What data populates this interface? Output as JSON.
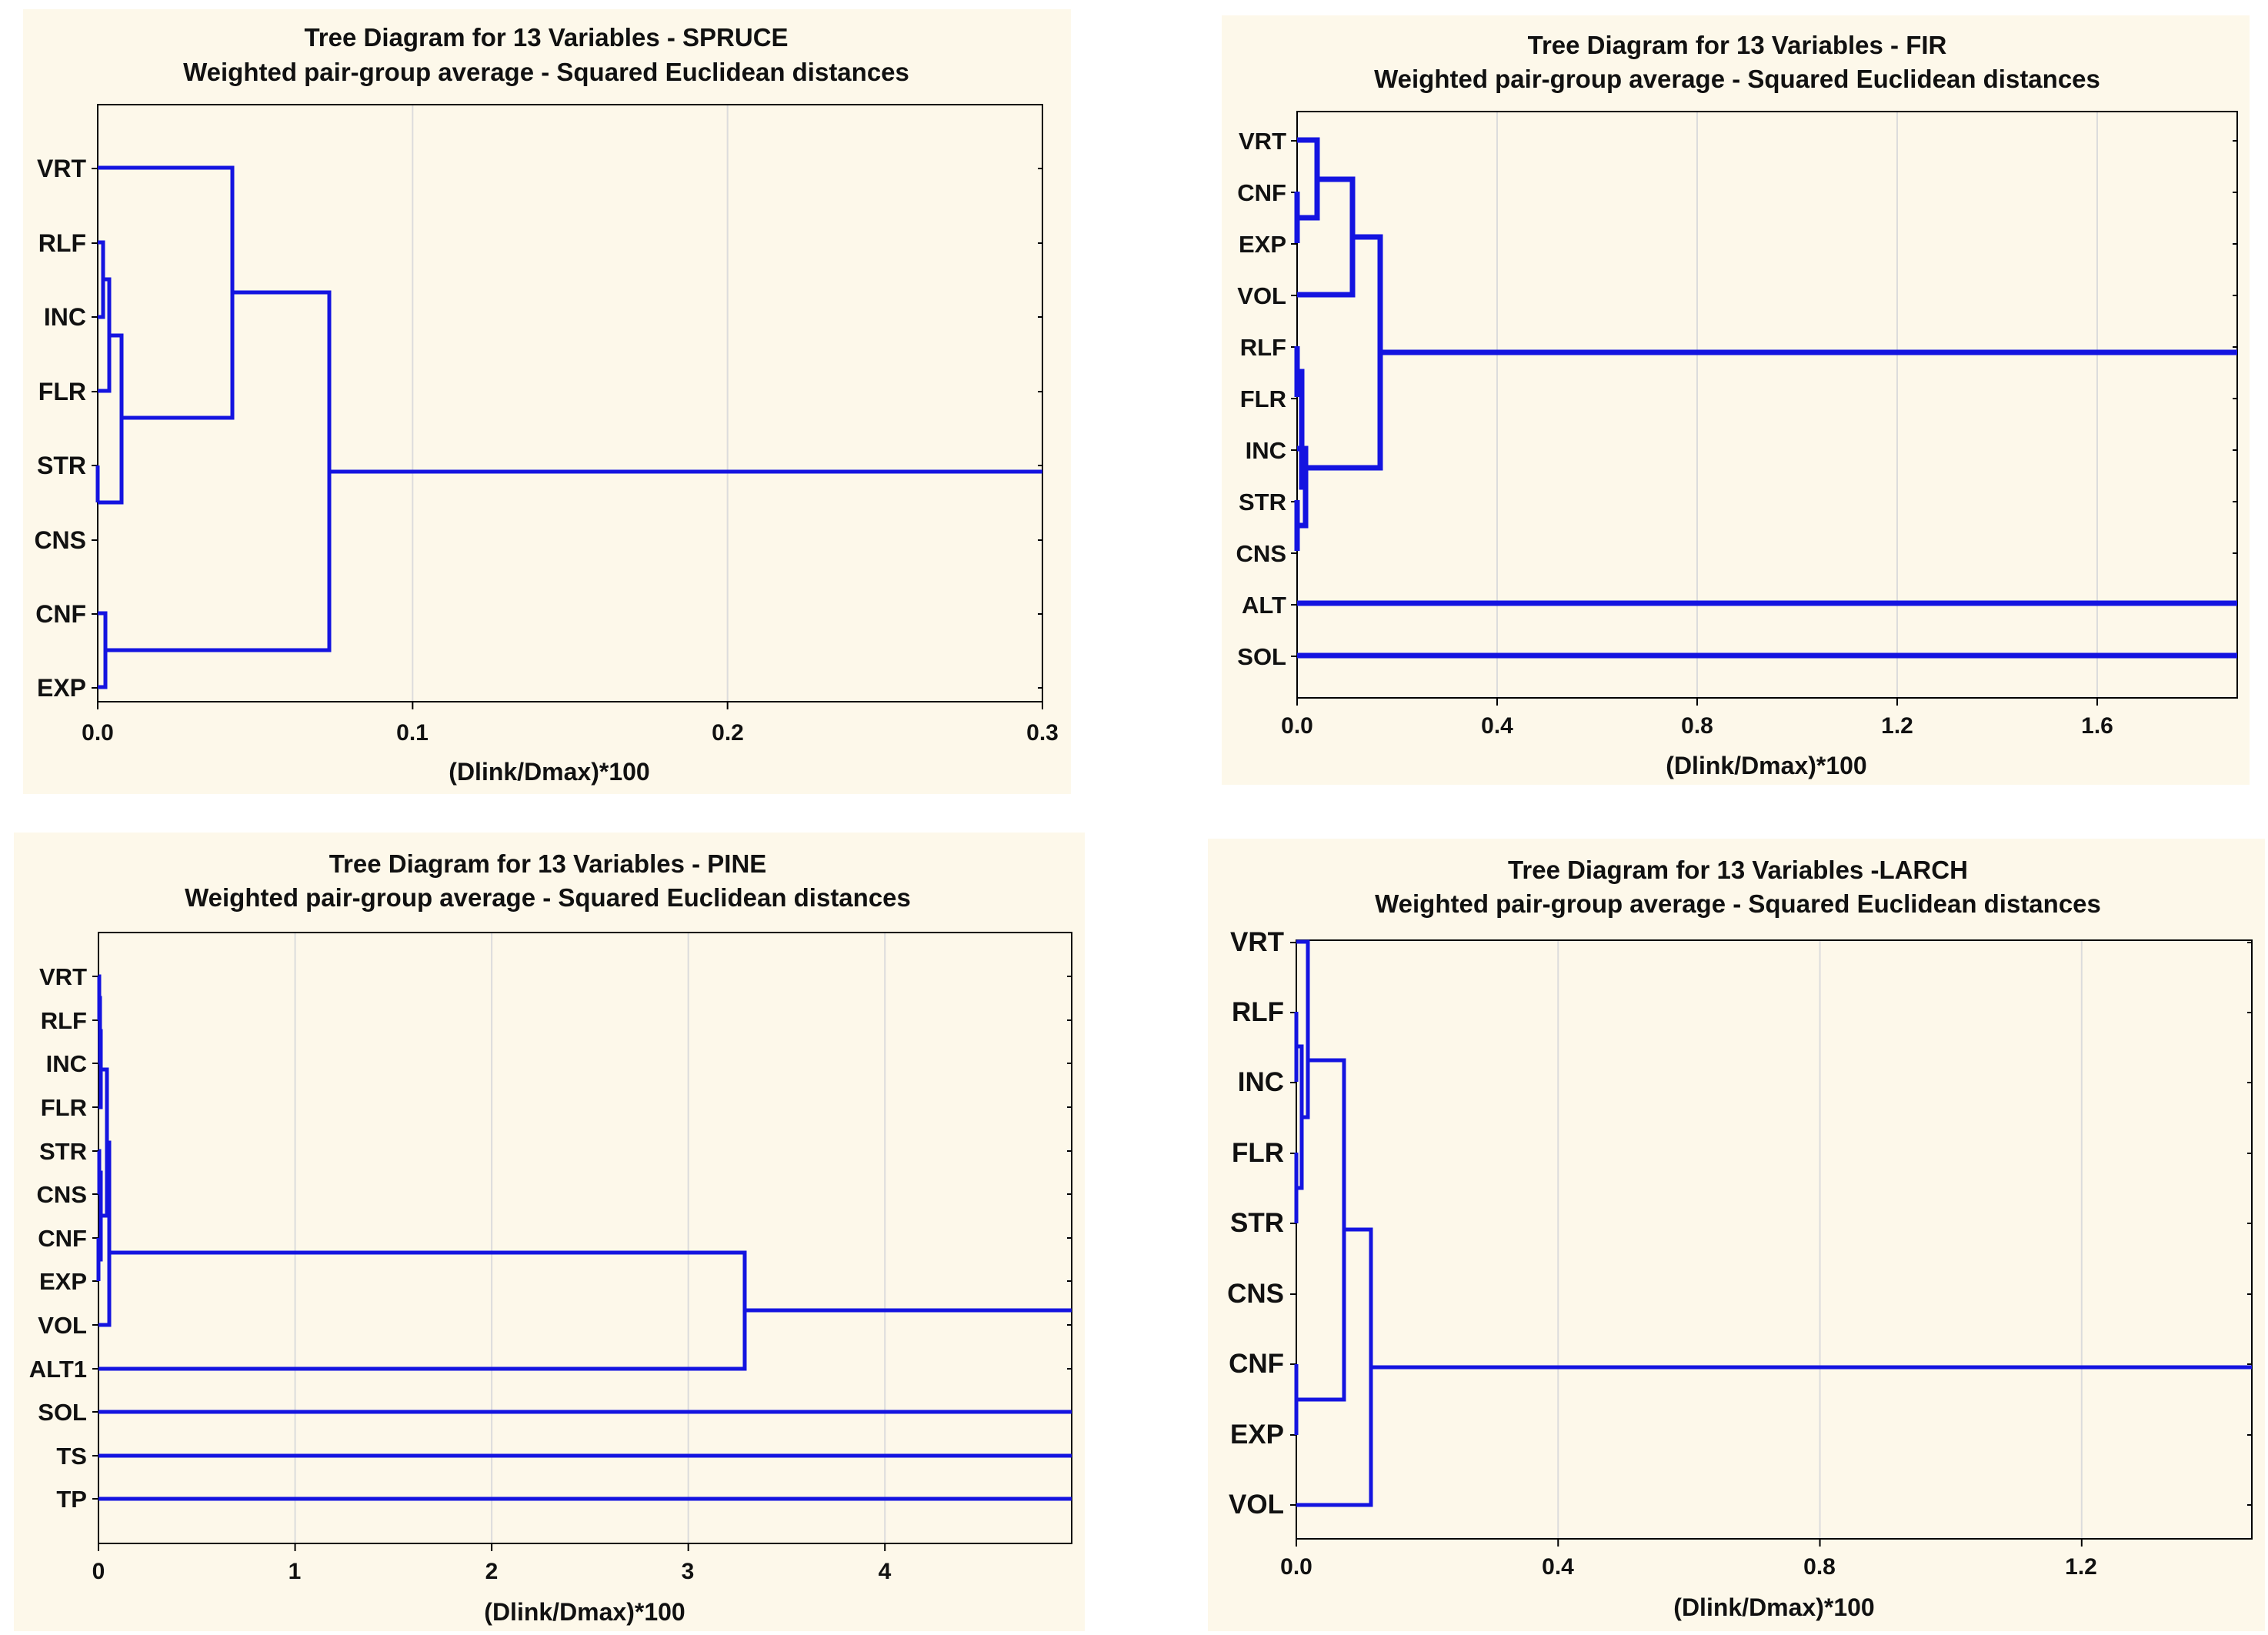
{
  "chart_data": [
    {
      "type": "dendrogram",
      "title": "Tree Diagram for 13 Variables - SPRUCE",
      "subtitle": "Weighted pair-group average - Squared Euclidean distances",
      "xlabel": "(Dlink/Dmax)*100",
      "xlim": [
        0,
        0.3
      ],
      "xticks": [
        0.0,
        0.1,
        0.2,
        0.3
      ],
      "xtick_labels": [
        "0.0",
        "0.1",
        "0.2",
        "0.3"
      ],
      "leaves": [
        "VRT",
        "RLF",
        "INC",
        "FLR",
        "STR",
        "CNS",
        "CNF",
        "EXP"
      ],
      "merges": [
        {
          "a": "RLF",
          "b": "INC",
          "height": 0.002
        },
        {
          "a": 1,
          "b": "FLR",
          "height": 0.004
        },
        {
          "a": "STR",
          "b": "CNS",
          "height": 0.0
        },
        {
          "a": 2,
          "b": 3,
          "height": 0.008
        },
        {
          "a": "VRT",
          "b": 4,
          "height": 0.042
        },
        {
          "a": "CNF",
          "b": "EXP",
          "height": 0.003
        },
        {
          "a": 5,
          "b": 6,
          "height": 0.073
        },
        {
          "a": 7,
          "b": "root",
          "height": 0.3
        }
      ]
    },
    {
      "type": "dendrogram",
      "title": "Tree Diagram for 13 Variables - FIR",
      "subtitle": "Weighted pair-group average - Squared Euclidean distances",
      "xlabel": "(Dlink/Dmax)*100",
      "xlim": [
        0,
        1.88
      ],
      "xticks": [
        0.0,
        0.4,
        0.8,
        1.2,
        1.6
      ],
      "xtick_labels": [
        "0.0",
        "0.4",
        "0.8",
        "1.2",
        "1.6"
      ],
      "leaves": [
        "VRT",
        "CNF",
        "EXP",
        "VOL",
        "RLF",
        "FLR",
        "INC",
        "STR",
        "CNS",
        "ALT",
        "SOL"
      ],
      "merges": [
        {
          "a": "CNF",
          "b": "EXP",
          "height": 0.0
        },
        {
          "a": "VRT",
          "b": 1,
          "height": 0.04
        },
        {
          "a": 2,
          "b": "VOL",
          "height": 0.11
        },
        {
          "a": "RLF",
          "b": "FLR",
          "height": 0.0
        },
        {
          "a": "STR",
          "b": "CNS",
          "height": 0.0
        },
        {
          "a": "INC",
          "b": 5,
          "height": 0.015
        },
        {
          "a": 4,
          "b": 6,
          "height": 0.01
        },
        {
          "a": 3,
          "b": 7,
          "height": 0.165
        },
        {
          "a": 8,
          "b": "root",
          "height": 1.88
        },
        {
          "a": "ALT",
          "b": "root",
          "height": 1.88
        },
        {
          "a": "SOL",
          "b": "root",
          "height": 1.88
        }
      ]
    },
    {
      "type": "dendrogram",
      "title": "Tree Diagram for 13 Variables - PINE",
      "subtitle": "Weighted pair-group average - Squared Euclidean distances",
      "xlabel": "(Dlink/Dmax)*100",
      "xlim": [
        0,
        4.95
      ],
      "xticks": [
        0,
        1,
        2,
        3,
        4
      ],
      "xtick_labels": [
        "0",
        "1",
        "2",
        "3",
        "4"
      ],
      "leaves": [
        "VRT",
        "RLF",
        "INC",
        "FLR",
        "STR",
        "CNS",
        "CNF",
        "EXP",
        "VOL",
        "ALT1",
        "SOL",
        "TS",
        "TP"
      ],
      "merges": [
        {
          "a": "VRT",
          "b": "RLF",
          "height": 0.005
        },
        {
          "a": 1,
          "b": "INC",
          "height": 0.01
        },
        {
          "a": 2,
          "b": "FLR",
          "height": 0.02
        },
        {
          "a": "STR",
          "b": "CNS",
          "height": 0.005
        },
        {
          "a": "CNF",
          "b": "EXP",
          "height": 0.0
        },
        {
          "a": 4,
          "b": 5,
          "height": 0.02
        },
        {
          "a": 3,
          "b": 6,
          "height": 0.05
        },
        {
          "a": 7,
          "b": "VOL",
          "height": 0.06
        },
        {
          "a": 8,
          "b": "ALT1",
          "height": 3.3
        },
        {
          "a": 9,
          "b": "root",
          "height": 4.95
        },
        {
          "a": "SOL",
          "b": "root",
          "height": 4.95
        },
        {
          "a": "TS",
          "b": "root",
          "height": 4.95
        },
        {
          "a": "TP",
          "b": "root",
          "height": 4.95
        }
      ]
    },
    {
      "type": "dendrogram",
      "title": "Tree Diagram for 13 Variables -LARCH",
      "subtitle": "Weighted pair-group average - Squared Euclidean distances",
      "xlabel": "(Dlink/Dmax)*100",
      "xlim": [
        0,
        1.46
      ],
      "xticks": [
        0.0,
        0.4,
        0.8,
        1.2
      ],
      "xtick_labels": [
        "0.0",
        "0.4",
        "0.8",
        "1.2"
      ],
      "leaves": [
        "VRT",
        "RLF",
        "INC",
        "FLR",
        "STR",
        "CNS",
        "CNF",
        "EXP",
        "VOL"
      ],
      "merges": [
        {
          "a": "RLF",
          "b": "INC",
          "height": 0.0
        },
        {
          "a": "FLR",
          "b": "STR",
          "height": 0.0
        },
        {
          "a": 1,
          "b": 2,
          "height": 0.01
        },
        {
          "a": "VRT",
          "b": 3,
          "height": 0.02
        },
        {
          "a": "CNF",
          "b": "EXP",
          "height": 0.0
        },
        {
          "a": 4,
          "b": 5,
          "height": 0.075
        },
        {
          "a": 6,
          "b": "VOL",
          "height": 0.115
        },
        {
          "a": 7,
          "b": "root",
          "height": 1.46
        }
      ]
    }
  ]
}
